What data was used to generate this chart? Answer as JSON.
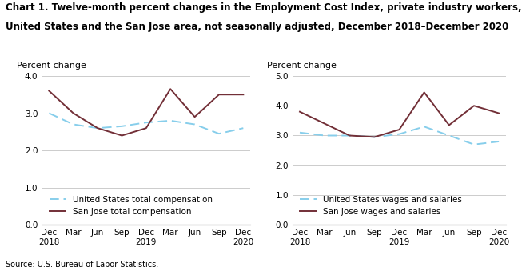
{
  "title_line1": "Chart 1. Twelve-month percent changes in the Employment Cost Index, private industry workers,",
  "title_line2": "United States and the San Jose area, not seasonally adjusted, December 2018–December 2020",
  "source": "Source: U.S. Bureau of Labor Statistics.",
  "x_labels": [
    "Dec\n2018",
    "Mar",
    "Jun",
    "Sep",
    "Dec\n2019",
    "Mar",
    "Jun",
    "Sep",
    "Dec\n2020"
  ],
  "left": {
    "ylabel": "Percent change",
    "ylim": [
      0.0,
      4.0
    ],
    "yticks": [
      0.0,
      1.0,
      2.0,
      3.0,
      4.0
    ],
    "us_total_comp": [
      3.0,
      2.7,
      2.6,
      2.65,
      2.75,
      2.8,
      2.7,
      2.45,
      2.6
    ],
    "sj_total_comp": [
      3.6,
      3.0,
      2.6,
      2.4,
      2.6,
      3.65,
      2.9,
      3.5,
      3.5
    ],
    "legend1": "United States total compensation",
    "legend2": "San Jose total compensation"
  },
  "right": {
    "ylabel": "Percent change",
    "ylim": [
      0.0,
      5.0
    ],
    "yticks": [
      0.0,
      1.0,
      2.0,
      3.0,
      4.0,
      5.0
    ],
    "us_wages": [
      3.1,
      3.0,
      3.0,
      2.95,
      3.05,
      3.3,
      3.0,
      2.7,
      2.8
    ],
    "sj_wages": [
      3.8,
      3.4,
      3.0,
      2.95,
      3.2,
      4.45,
      3.35,
      4.0,
      3.75
    ],
    "legend1": "United States wages and salaries",
    "legend2": "San Jose wages and salaries"
  },
  "us_color": "#87CEEB",
  "sj_color": "#722F37",
  "grid_color": "#CCCCCC",
  "bg_color": "#FFFFFF",
  "title_fontsize": 8.5,
  "label_fontsize": 8,
  "legend_fontsize": 7.5,
  "tick_fontsize": 7.5
}
